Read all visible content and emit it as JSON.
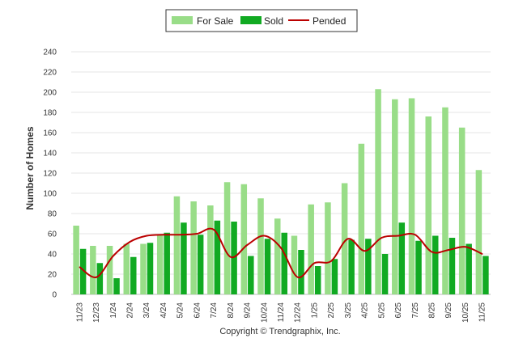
{
  "chart_data": {
    "type": "bar",
    "title": "",
    "xlabel": "",
    "ylabel": "Number of Homes",
    "ylim": [
      0,
      240
    ],
    "yticks": [
      0,
      20,
      40,
      60,
      80,
      100,
      120,
      140,
      160,
      180,
      200,
      220,
      240
    ],
    "grid": true,
    "legend_position": "top-center",
    "categories": [
      "11/23",
      "12/23",
      "1/24",
      "2/24",
      "3/24",
      "4/24",
      "5/24",
      "6/24",
      "7/24",
      "8/24",
      "9/24",
      "10/24",
      "11/24",
      "12/24",
      "1/25",
      "2/25",
      "3/25",
      "4/25",
      "5/25",
      "6/25",
      "7/25",
      "8/25",
      "9/25",
      "10/25",
      "11/25"
    ],
    "series": [
      {
        "name": "For Sale",
        "kind": "bar",
        "color": "#99dd88",
        "values": [
          68,
          48,
          48,
          50,
          50,
          59,
          97,
          92,
          88,
          111,
          109,
          95,
          75,
          58,
          89,
          91,
          110,
          149,
          203,
          193,
          194,
          176,
          185,
          165,
          123
        ]
      },
      {
        "name": "Sold",
        "kind": "bar",
        "color": "#11aa22",
        "values": [
          45,
          31,
          16,
          37,
          51,
          61,
          71,
          59,
          73,
          72,
          38,
          55,
          61,
          44,
          28,
          35,
          54,
          55,
          40,
          71,
          53,
          58,
          56,
          50,
          38
        ]
      },
      {
        "name": "Pended",
        "kind": "line",
        "color": "#bb0000",
        "values": [
          27,
          17,
          38,
          52,
          58,
          59,
          59,
          60,
          64,
          37,
          49,
          58,
          46,
          17,
          31,
          33,
          55,
          43,
          56,
          58,
          59,
          42,
          44,
          47,
          40
        ]
      }
    ]
  },
  "legend": {
    "for_sale": "For Sale",
    "sold": "Sold",
    "pended": "Pended"
  },
  "copyright": "Copyright © Trendgraphix, Inc."
}
